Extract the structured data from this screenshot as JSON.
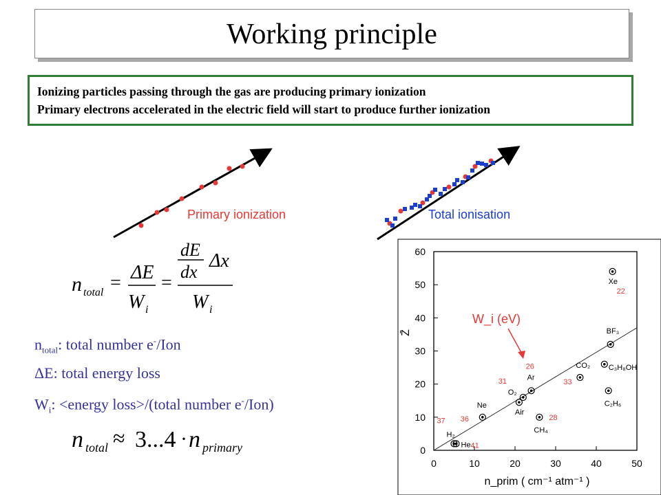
{
  "title": "Working principle",
  "info": {
    "line1": "Ionizing particles passing through the gas are producing primary ionization",
    "line2": "Primary electrons accelerated in the electric field will start to produce further ionization"
  },
  "diagrams": {
    "primary_label": "Primary ionization",
    "total_label": "Total ionisation"
  },
  "formula": {
    "n": "n",
    "total_sub": "total",
    "eq": "=",
    "delta_e": "ΔE",
    "w": "W",
    "i_sub": "i",
    "de": "dE",
    "dx": "dx",
    "delta_x": "Δx"
  },
  "definitions": {
    "ntotal_n": "n",
    "ntotal_sub": "total",
    "ntotal_text1": ": total number e",
    "ntotal_sup": "-",
    "ntotal_text2": "/Ion",
    "deltae": "ΔE: total energy loss",
    "wi_w": "W",
    "wi_sub": "i",
    "wi_text1": ": <energy loss>/(total number e",
    "wi_sup": "-",
    "wi_text2": "/Ion)"
  },
  "formula2": {
    "n": "n",
    "total_sub": "total",
    "approx": "≈",
    "range": "3...4",
    "dot": "·",
    "primary_sub": "primary"
  },
  "colors": {
    "green_border": "#2e7d32",
    "definition_text": "#333399",
    "primary_dot": "#e53935",
    "total_dot": "#1a3fd0",
    "chart_label_red": "#e53935"
  },
  "chart_data": {
    "type": "scatter",
    "title": "",
    "xlabel": "n_prim ( cm⁻¹ atm⁻¹ )",
    "ylabel": "Z̄",
    "xlim": [
      0,
      50
    ],
    "ylim": [
      0,
      60
    ],
    "x_ticks": [
      "0",
      "10",
      "20",
      "30",
      "40",
      "50"
    ],
    "y_ticks": [
      "0",
      "10",
      "20",
      "30",
      "40",
      "50",
      "60"
    ],
    "grid": false,
    "annotation": "W_i (eV)",
    "fit_line": {
      "from": [
        0,
        0
      ],
      "to": [
        50,
        37
      ]
    },
    "points": [
      {
        "gas": "He",
        "x": 5,
        "y": 2,
        "wi": "41"
      },
      {
        "gas": "H₂",
        "x": 5.5,
        "y": 2,
        "wi": "37"
      },
      {
        "gas": "Ne",
        "x": 12,
        "y": 10,
        "wi": "36"
      },
      {
        "gas": "Air",
        "x": 21,
        "y": 14.5,
        "wi": ""
      },
      {
        "gas": "O₂",
        "x": 22,
        "y": 16,
        "wi": "31"
      },
      {
        "gas": "Ar",
        "x": 24,
        "y": 18,
        "wi": "26"
      },
      {
        "gas": "CH₄",
        "x": 26,
        "y": 10,
        "wi": "28"
      },
      {
        "gas": "CO₂",
        "x": 36,
        "y": 22,
        "wi": "33"
      },
      {
        "gas": "C₃H₈OH",
        "x": 42,
        "y": 26,
        "wi": ""
      },
      {
        "gas": "C₂H₆",
        "x": 43,
        "y": 18,
        "wi": ""
      },
      {
        "gas": "BF₃",
        "x": 43.5,
        "y": 32,
        "wi": ""
      },
      {
        "gas": "Xe",
        "x": 44,
        "y": 54,
        "wi": "22"
      }
    ]
  }
}
